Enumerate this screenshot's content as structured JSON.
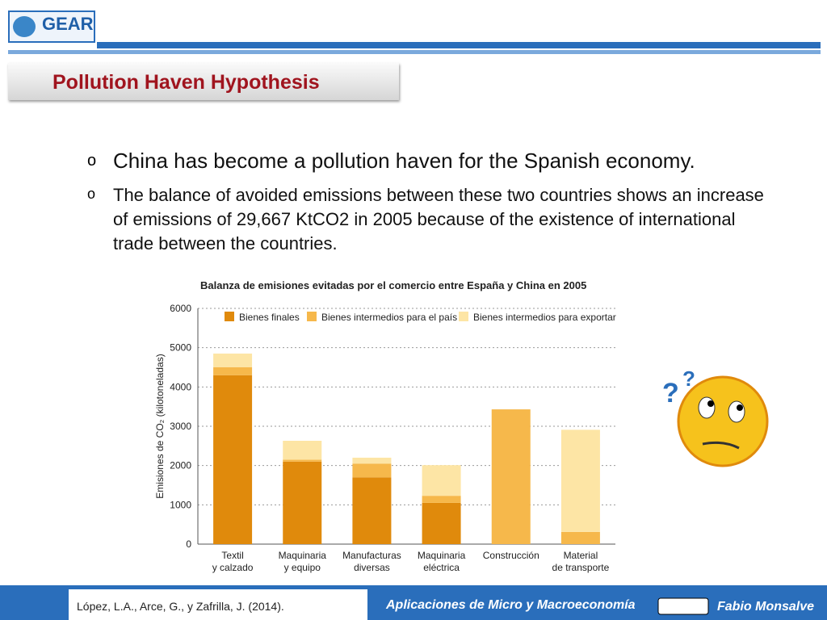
{
  "header": {
    "logo": "GEAR",
    "title": "Pollution Haven Hypothesis"
  },
  "bullets": [
    "China has become a pollution haven for the Spanish economy.",
    "The balance of avoided emissions between these two countries shows an increase of emissions of 29,667 KtCO2 in 2005 because of the existence of international trade between the countries."
  ],
  "chart_data": {
    "type": "stacked_bar",
    "title": "Balanza de emisiones evitadas por el comercio entre España y China en 2005",
    "y_label": "Emisiones de CO₂ (kilotoneladas)",
    "categories": [
      [
        "Textil",
        "y calzado"
      ],
      [
        "Maquinaria",
        "y equipo"
      ],
      [
        "Manufacturas",
        "diversas"
      ],
      [
        "Maquinaria",
        "eléctrica"
      ],
      [
        "Construcción",
        ""
      ],
      [
        "Material",
        "de transporte"
      ]
    ],
    "series": [
      {
        "name": "Bienes finales",
        "color": "#e08a0c",
        "values": [
          4300,
          2100,
          1700,
          1050,
          0,
          0
        ]
      },
      {
        "name": "Bienes intermedios para el país",
        "color": "#f6b84b",
        "values": [
          200,
          50,
          350,
          180,
          3430,
          310
        ]
      },
      {
        "name": "Bienes intermedios para exportar",
        "color": "#fde5a5",
        "values": [
          350,
          480,
          150,
          780,
          0,
          2600
        ]
      }
    ],
    "ylim": [
      0,
      6000
    ],
    "yticks": [
      0,
      1000,
      2000,
      3000,
      4000,
      5000,
      6000
    ],
    "grid": true
  },
  "footer": {
    "citation": "López, L.A., Arce, G., y Zafrilla, J. (2014).",
    "course": "Aplicaciones de Micro y Macroeconomía",
    "author": "Fabio Monsalve"
  }
}
